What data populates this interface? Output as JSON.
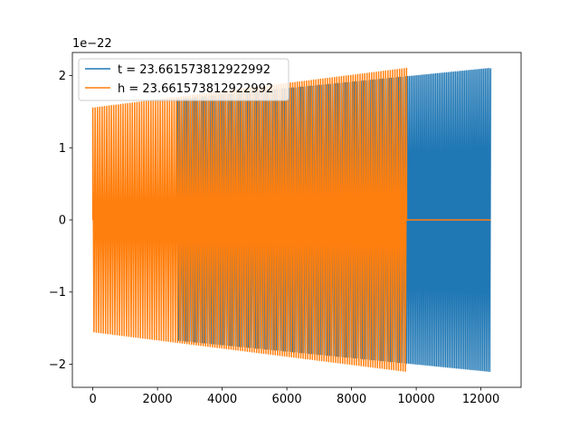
{
  "chart_data": {
    "type": "line",
    "title": "",
    "xlabel": "",
    "ylabel": "",
    "y_offset_text": "1e−22",
    "xlim": [
      -632,
      13242
    ],
    "ylim": [
      -2.32,
      2.32
    ],
    "xticks": [
      0,
      2000,
      4000,
      6000,
      8000,
      10000,
      12000
    ],
    "xtick_labels": [
      "0",
      "2000",
      "4000",
      "6000",
      "8000",
      "10000",
      "12000"
    ],
    "yticks": [
      -2,
      -1,
      0,
      1,
      2
    ],
    "ytick_labels": [
      "−2",
      "−1",
      "0",
      "1",
      "2"
    ],
    "grid": false,
    "legend_position": "upper-left",
    "series": [
      {
        "name": "t = 23.661573812922992",
        "color": "#1f77b4",
        "x_start": 0,
        "x_end": 12300,
        "initial_zero_until": 2620,
        "amplitude_start": 1.55,
        "amplitude_end": 2.1,
        "oscillation_count": 170
      },
      {
        "name": "h = 23.661573812922992",
        "color": "#ff7f0e",
        "x_start": 0,
        "x_end": 9700,
        "tail_zero_until": 12300,
        "amplitude_start": 1.55,
        "amplitude_end": 2.1,
        "oscillation_count": 135
      }
    ]
  }
}
